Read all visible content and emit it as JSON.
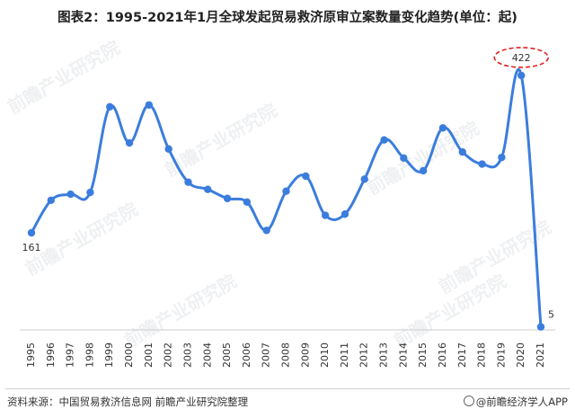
{
  "title": "图表2：1995-2021年1月全球发起贸易救济原审立案数量变化趋势(单位：起)",
  "source": "资料来源：中国贸易救济信息网 前瞻产业研究院整理",
  "brand": "@前瞻经济学人APP",
  "watermark": "前瞻产业研究院",
  "colors": {
    "line": "#3B7DDD",
    "highlight": "#E02020",
    "axis": "#cccccc"
  },
  "chart_data": {
    "type": "line",
    "title": "图表2：1995-2021年1月全球发起贸易救济原审立案数量变化趋势(单位：起)",
    "xlabel": "",
    "ylabel": "",
    "unit": "起",
    "grid": false,
    "legend": "none",
    "ylim": [
      0,
      480
    ],
    "categories": [
      "1995",
      "1996",
      "1997",
      "1998",
      "1999",
      "2000",
      "2001",
      "2002",
      "2003",
      "2004",
      "2005",
      "2006",
      "2007",
      "2008",
      "2009",
      "2010",
      "2011",
      "2012",
      "2013",
      "2014",
      "2015",
      "2016",
      "2017",
      "2018",
      "2019",
      "2020",
      "2021"
    ],
    "series": [
      {
        "name": "",
        "values": [
          161,
          215,
          225,
          228,
          370,
          310,
          373,
          300,
          245,
          233,
          218,
          212,
          165,
          230,
          255,
          190,
          192,
          250,
          315,
          285,
          264,
          335,
          295,
          275,
          286,
          422,
          5
        ]
      }
    ],
    "data_labels": [
      {
        "category": "1995",
        "text": "161"
      },
      {
        "category": "2020",
        "text": "422",
        "highlighted": true
      },
      {
        "category": "2021",
        "text": "5"
      }
    ]
  }
}
